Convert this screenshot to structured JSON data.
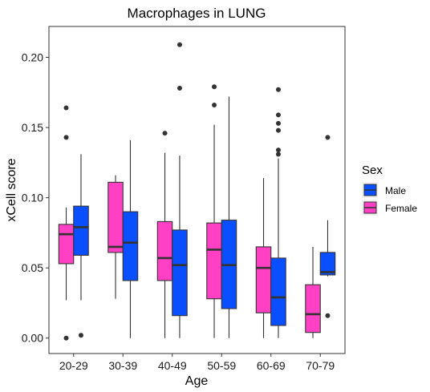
{
  "chart_data": {
    "type": "boxplot",
    "title": "Macrophages in LUNG",
    "xlabel": "Age",
    "ylabel": "xCell score",
    "categories": [
      "20-29",
      "30-39",
      "40-49",
      "50-59",
      "60-69",
      "70-79"
    ],
    "ylim": [
      -0.011,
      0.222
    ],
    "yticks": [
      0.0,
      0.05,
      0.1,
      0.15,
      0.2
    ],
    "ytick_labels": [
      "0.00",
      "0.05",
      "0.10",
      "0.15",
      "0.20"
    ],
    "grid": false,
    "legend": {
      "title": "Sex",
      "position": "right"
    },
    "series": [
      {
        "name": "Female",
        "color": "#FF40C4",
        "boxes": [
          {
            "category": "20-29",
            "min": 0.027,
            "q1": 0.053,
            "median": 0.074,
            "q3": 0.081,
            "max": 0.093,
            "outliers": [
              0.164,
              0.143,
              0.0
            ]
          },
          {
            "category": "30-39",
            "min": 0.028,
            "q1": 0.061,
            "median": 0.065,
            "q3": 0.111,
            "max": 0.116,
            "outliers": []
          },
          {
            "category": "40-49",
            "min": 0.0,
            "q1": 0.041,
            "median": 0.057,
            "q3": 0.083,
            "max": 0.132,
            "outliers": [
              0.146
            ]
          },
          {
            "category": "50-59",
            "min": 0.0,
            "q1": 0.028,
            "median": 0.063,
            "q3": 0.082,
            "max": 0.152,
            "outliers": [
              0.179,
              0.166
            ]
          },
          {
            "category": "60-69",
            "min": 0.0,
            "q1": 0.018,
            "median": 0.05,
            "q3": 0.065,
            "max": 0.114,
            "outliers": []
          },
          {
            "category": "70-79",
            "min": 0.0,
            "q1": 0.004,
            "median": 0.017,
            "q3": 0.038,
            "max": 0.065,
            "outliers": []
          }
        ]
      },
      {
        "name": "Male",
        "color": "#0A4FFF",
        "boxes": [
          {
            "category": "20-29",
            "min": 0.027,
            "q1": 0.059,
            "median": 0.079,
            "q3": 0.094,
            "max": 0.131,
            "outliers": [
              0.002
            ]
          },
          {
            "category": "30-39",
            "min": 0.0,
            "q1": 0.041,
            "median": 0.068,
            "q3": 0.09,
            "max": 0.141,
            "outliers": []
          },
          {
            "category": "40-49",
            "min": 0.0,
            "q1": 0.016,
            "median": 0.052,
            "q3": 0.077,
            "max": 0.13,
            "outliers": [
              0.209,
              0.178
            ]
          },
          {
            "category": "50-59",
            "min": 0.0,
            "q1": 0.021,
            "median": 0.052,
            "q3": 0.084,
            "max": 0.172,
            "outliers": []
          },
          {
            "category": "60-69",
            "min": 0.0,
            "q1": 0.009,
            "median": 0.029,
            "q3": 0.057,
            "max": 0.128,
            "outliers": [
              0.177,
              0.159,
              0.153,
              0.148,
              0.134,
              0.131
            ]
          },
          {
            "category": "70-79",
            "min": 0.044,
            "q1": 0.045,
            "median": 0.047,
            "q3": 0.061,
            "max": 0.084,
            "outliers": [
              0.143,
              0.016
            ]
          }
        ]
      }
    ]
  }
}
